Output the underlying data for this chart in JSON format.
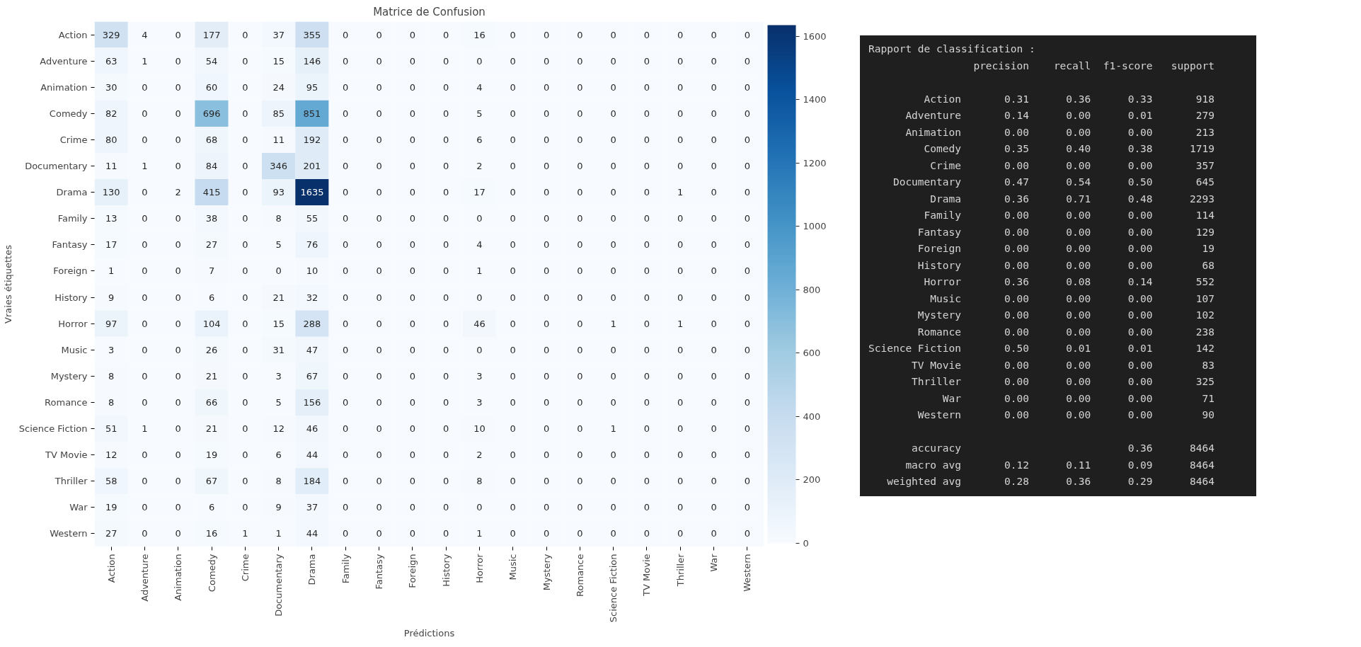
{
  "chart_data": [
    {
      "type": "heatmap",
      "title": "Matrice de Confusion",
      "xlabel": "Prédictions",
      "ylabel": "Vraies étiquettes",
      "categories": [
        "Action",
        "Adventure",
        "Animation",
        "Comedy",
        "Crime",
        "Documentary",
        "Drama",
        "Family",
        "Fantasy",
        "Foreign",
        "History",
        "Horror",
        "Music",
        "Mystery",
        "Romance",
        "Science Fiction",
        "TV Movie",
        "Thriller",
        "War",
        "Western"
      ],
      "y_categories": [
        "Action",
        "Adventure",
        "Animation",
        "Comedy",
        "Crime",
        "Documentary",
        "Drama",
        "Family",
        "Fantasy",
        "Foreign",
        "History",
        "Horror",
        "Music",
        "Mystery",
        "Romance",
        "Science Fiction",
        "TV Movie",
        "Thriller",
        "War",
        "Western"
      ],
      "cells": [
        [
          329,
          4,
          0,
          177,
          0,
          37,
          355,
          0,
          0,
          0,
          0,
          16,
          0,
          0,
          0,
          0,
          0,
          0,
          0,
          0
        ],
        [
          63,
          1,
          0,
          54,
          0,
          15,
          146,
          0,
          0,
          0,
          0,
          0,
          0,
          0,
          0,
          0,
          0,
          0,
          0,
          0
        ],
        [
          30,
          0,
          0,
          60,
          0,
          24,
          95,
          0,
          0,
          0,
          0,
          4,
          0,
          0,
          0,
          0,
          0,
          0,
          0,
          0
        ],
        [
          82,
          0,
          0,
          696,
          0,
          85,
          851,
          0,
          0,
          0,
          0,
          5,
          0,
          0,
          0,
          0,
          0,
          0,
          0,
          0
        ],
        [
          80,
          0,
          0,
          68,
          0,
          11,
          192,
          0,
          0,
          0,
          0,
          6,
          0,
          0,
          0,
          0,
          0,
          0,
          0,
          0
        ],
        [
          11,
          1,
          0,
          84,
          0,
          346,
          201,
          0,
          0,
          0,
          0,
          2,
          0,
          0,
          0,
          0,
          0,
          0,
          0,
          0
        ],
        [
          130,
          0,
          2,
          415,
          0,
          93,
          1635,
          0,
          0,
          0,
          0,
          17,
          0,
          0,
          0,
          0,
          0,
          1,
          0,
          0
        ],
        [
          13,
          0,
          0,
          38,
          0,
          8,
          55,
          0,
          0,
          0,
          0,
          0,
          0,
          0,
          0,
          0,
          0,
          0,
          0,
          0
        ],
        [
          17,
          0,
          0,
          27,
          0,
          5,
          76,
          0,
          0,
          0,
          0,
          4,
          0,
          0,
          0,
          0,
          0,
          0,
          0,
          0
        ],
        [
          1,
          0,
          0,
          7,
          0,
          0,
          10,
          0,
          0,
          0,
          0,
          1,
          0,
          0,
          0,
          0,
          0,
          0,
          0,
          0
        ],
        [
          9,
          0,
          0,
          6,
          0,
          21,
          32,
          0,
          0,
          0,
          0,
          0,
          0,
          0,
          0,
          0,
          0,
          0,
          0,
          0
        ],
        [
          97,
          0,
          0,
          104,
          0,
          15,
          288,
          0,
          0,
          0,
          0,
          46,
          0,
          0,
          0,
          1,
          0,
          1,
          0,
          0
        ],
        [
          3,
          0,
          0,
          26,
          0,
          31,
          47,
          0,
          0,
          0,
          0,
          0,
          0,
          0,
          0,
          0,
          0,
          0,
          0,
          0
        ],
        [
          8,
          0,
          0,
          21,
          0,
          3,
          67,
          0,
          0,
          0,
          0,
          3,
          0,
          0,
          0,
          0,
          0,
          0,
          0,
          0
        ],
        [
          8,
          0,
          0,
          66,
          0,
          5,
          156,
          0,
          0,
          0,
          0,
          3,
          0,
          0,
          0,
          0,
          0,
          0,
          0,
          0
        ],
        [
          51,
          1,
          0,
          21,
          0,
          12,
          46,
          0,
          0,
          0,
          0,
          10,
          0,
          0,
          0,
          1,
          0,
          0,
          0,
          0
        ],
        [
          12,
          0,
          0,
          19,
          0,
          6,
          44,
          0,
          0,
          0,
          0,
          2,
          0,
          0,
          0,
          0,
          0,
          0,
          0,
          0
        ],
        [
          58,
          0,
          0,
          67,
          0,
          8,
          184,
          0,
          0,
          0,
          0,
          8,
          0,
          0,
          0,
          0,
          0,
          0,
          0,
          0
        ],
        [
          19,
          0,
          0,
          6,
          0,
          9,
          37,
          0,
          0,
          0,
          0,
          0,
          0,
          0,
          0,
          0,
          0,
          0,
          0,
          0
        ],
        [
          27,
          0,
          0,
          16,
          1,
          1,
          44,
          0,
          0,
          0,
          0,
          1,
          0,
          0,
          0,
          0,
          0,
          0,
          0,
          0
        ]
      ],
      "clim": [
        0,
        1635
      ],
      "cticks": [
        0,
        200,
        400,
        600,
        800,
        1000,
        1200,
        1400,
        1600
      ],
      "data_labels": true
    },
    {
      "type": "other",
      "title": "Rapport de classification :",
      "annotations": [
        "                 precision    recall  f1-score   support",
        "         Action       0.31      0.36      0.33       918\n      Adventure       0.14      0.00      0.01       279\n      Animation       0.00      0.00      0.00       213\n         Comedy       0.35      0.40      0.38      1719\n          Crime       0.00      0.00      0.00       357\n    Documentary       0.47      0.54      0.50       645\n          Drama       0.36      0.71      0.48      2293\n         Family       0.00      0.00      0.00       114\n        Fantasy       0.00      0.00      0.00       129\n        Foreign       0.00      0.00      0.00        19\n        History       0.00      0.00      0.00        68\n         Horror       0.36      0.08      0.14       552\n          Music       0.00      0.00      0.00       107\n        Mystery       0.00      0.00      0.00       102\n        Romance       0.00      0.00      0.00       238\nScience Fiction       0.50      0.01      0.01       142\n       TV Movie       0.00      0.00      0.00        83\n       Thriller       0.00      0.00      0.00       325\n            War       0.00      0.00      0.00        71\n        Western       0.00      0.00      0.00        90",
        "       accuracy                           0.36      8464\n      macro avg       0.12      0.11      0.09      8464\n   weighted avg       0.28      0.36      0.29      8464"
      ]
    }
  ]
}
